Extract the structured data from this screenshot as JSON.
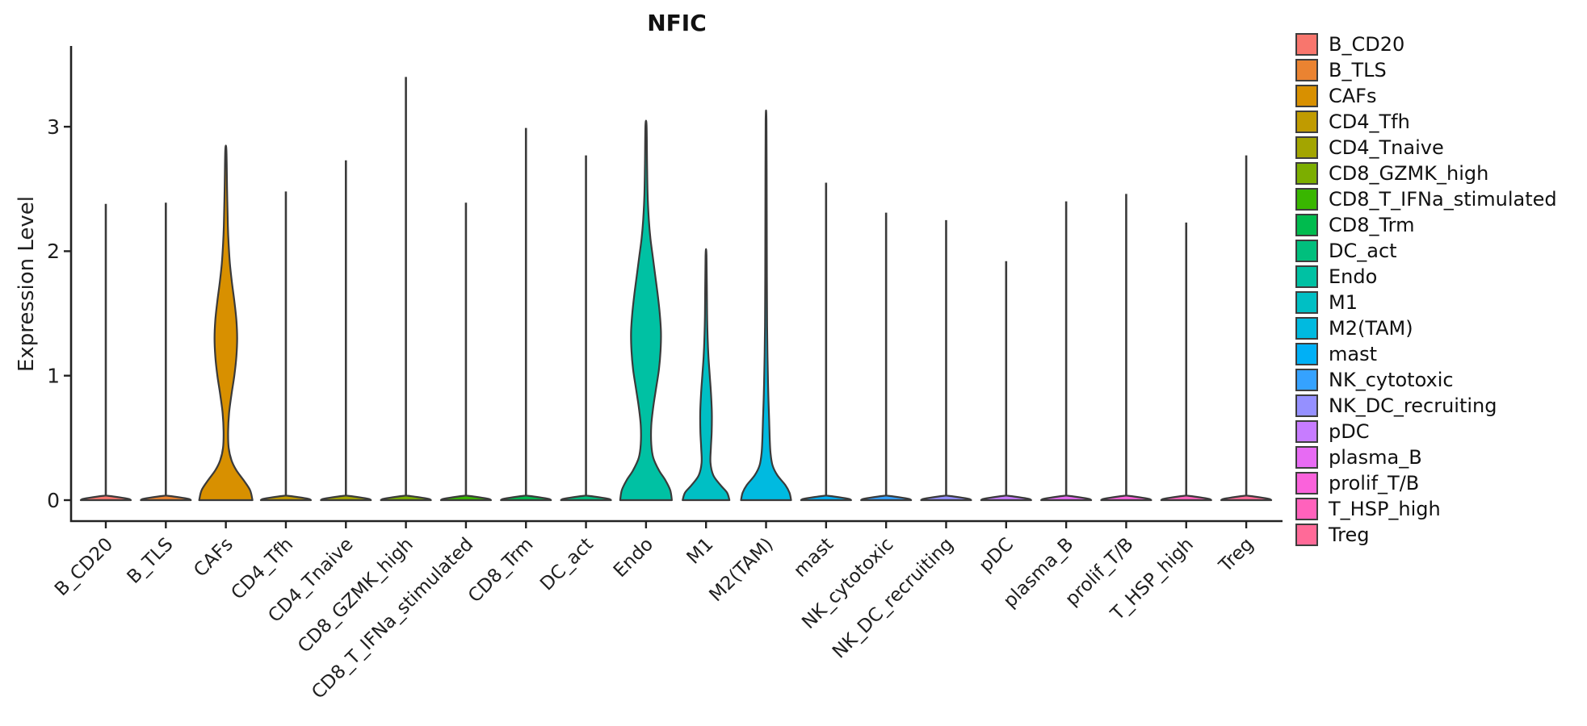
{
  "chart_data": {
    "type": "violin",
    "title": "NFIC",
    "xlabel": "",
    "ylabel": "Expression Level",
    "ylim": [
      0,
      3.65
    ],
    "yticks": [
      0,
      1,
      2,
      3
    ],
    "grid": false,
    "legend_position": "right",
    "x_tick_angle": 45,
    "categories": [
      "B_CD20",
      "B_TLS",
      "CAFs",
      "CD4_Tfh",
      "CD4_Tnaive",
      "CD8_GZMK_high",
      "CD8_T_IFNa_stimulated",
      "CD8_Trm",
      "DC_act",
      "Endo",
      "M1",
      "M2(TAM)",
      "mast",
      "NK_cytotoxic",
      "NK_DC_recruiting",
      "pDC",
      "plasma_B",
      "prolif_T/B",
      "T_HSP_high",
      "Treg"
    ],
    "series": [
      {
        "name": "B_CD20",
        "color": "#F8766D",
        "max": 2.38,
        "body": null
      },
      {
        "name": "B_TLS",
        "color": "#EA8331",
        "max": 2.39,
        "body": null
      },
      {
        "name": "CAFs",
        "color": "#D89000",
        "max": 2.81,
        "body": [
          [
            0,
            33
          ],
          [
            0.08,
            30
          ],
          [
            0.16,
            22
          ],
          [
            0.24,
            13
          ],
          [
            0.32,
            7
          ],
          [
            0.42,
            3.5
          ],
          [
            0.55,
            2.8
          ],
          [
            0.7,
            4
          ],
          [
            0.85,
            7
          ],
          [
            1.0,
            10.5
          ],
          [
            1.15,
            13
          ],
          [
            1.3,
            14
          ],
          [
            1.45,
            13
          ],
          [
            1.6,
            10.5
          ],
          [
            1.75,
            7.5
          ],
          [
            1.9,
            5
          ],
          [
            2.05,
            3.5
          ],
          [
            2.2,
            2.5
          ],
          [
            2.5,
            1.5
          ],
          [
            2.81,
            0.7
          ]
        ]
      },
      {
        "name": "CD4_Tfh",
        "color": "#C09B00",
        "max": 2.48,
        "body": null
      },
      {
        "name": "CD4_Tnaive",
        "color": "#A3A500",
        "max": 2.73,
        "body": null
      },
      {
        "name": "CD8_GZMK_high",
        "color": "#7CAE00",
        "max": 3.4,
        "body": null
      },
      {
        "name": "CD8_T_IFNa_stimulated",
        "color": "#39B600",
        "max": 2.39,
        "body": null
      },
      {
        "name": "CD8_Trm",
        "color": "#00BB4E",
        "max": 2.99,
        "body": null
      },
      {
        "name": "DC_act",
        "color": "#00BF7D",
        "max": 2.77,
        "body": null
      },
      {
        "name": "Endo",
        "color": "#00C1A3",
        "max": 3.01,
        "body": [
          [
            0,
            32
          ],
          [
            0.08,
            30
          ],
          [
            0.16,
            24
          ],
          [
            0.24,
            16
          ],
          [
            0.34,
            9
          ],
          [
            0.45,
            6.5
          ],
          [
            0.6,
            6.5
          ],
          [
            0.75,
            9
          ],
          [
            0.9,
            12.5
          ],
          [
            1.05,
            16
          ],
          [
            1.2,
            18
          ],
          [
            1.35,
            18.5
          ],
          [
            1.5,
            17
          ],
          [
            1.65,
            14.5
          ],
          [
            1.8,
            11.5
          ],
          [
            1.95,
            8.5
          ],
          [
            2.1,
            5.5
          ],
          [
            2.25,
            3.5
          ],
          [
            2.45,
            2
          ],
          [
            2.7,
            1.3
          ],
          [
            3.01,
            0.7
          ]
        ]
      },
      {
        "name": "M1",
        "color": "#00BFC4",
        "max": 1.96,
        "body": [
          [
            0,
            29
          ],
          [
            0.06,
            26
          ],
          [
            0.12,
            18
          ],
          [
            0.2,
            9
          ],
          [
            0.3,
            5.5
          ],
          [
            0.42,
            6
          ],
          [
            0.55,
            7
          ],
          [
            0.7,
            7.2
          ],
          [
            0.85,
            6.2
          ],
          [
            1.0,
            4.6
          ],
          [
            1.15,
            3
          ],
          [
            1.3,
            2
          ],
          [
            1.5,
            1.3
          ],
          [
            1.96,
            0.6
          ]
        ]
      },
      {
        "name": "M2(TAM)",
        "color": "#00BAE0",
        "max": 3.05,
        "body": [
          [
            0,
            31
          ],
          [
            0.06,
            29
          ],
          [
            0.12,
            24
          ],
          [
            0.2,
            14
          ],
          [
            0.28,
            8
          ],
          [
            0.38,
            5.5
          ],
          [
            0.5,
            4.5
          ],
          [
            0.65,
            3.8
          ],
          [
            0.8,
            3
          ],
          [
            0.95,
            2.4
          ],
          [
            1.15,
            1.8
          ],
          [
            1.4,
            1.3
          ],
          [
            1.8,
            1
          ],
          [
            2.4,
            0.8
          ],
          [
            3.05,
            0.5
          ]
        ]
      },
      {
        "name": "mast",
        "color": "#00B0F6",
        "max": 2.55,
        "body": null
      },
      {
        "name": "NK_cytotoxic",
        "color": "#35A2FF",
        "max": 2.31,
        "body": null
      },
      {
        "name": "NK_DC_recruiting",
        "color": "#9590FF",
        "max": 2.25,
        "body": null
      },
      {
        "name": "pDC",
        "color": "#C77CFF",
        "max": 1.92,
        "body": null
      },
      {
        "name": "plasma_B",
        "color": "#E76BF3",
        "max": 2.4,
        "body": null
      },
      {
        "name": "prolif_T/B",
        "color": "#FA62DB",
        "max": 2.46,
        "body": null
      },
      {
        "name": "T_HSP_high",
        "color": "#FF62BC",
        "max": 2.23,
        "body": null
      },
      {
        "name": "Treg",
        "color": "#FF6A98",
        "max": 2.77,
        "body": null
      }
    ],
    "flat_profile": [
      [
        0,
        31
      ],
      [
        0.01,
        28
      ],
      [
        0.025,
        14
      ],
      [
        0.035,
        2.5
      ]
    ]
  }
}
